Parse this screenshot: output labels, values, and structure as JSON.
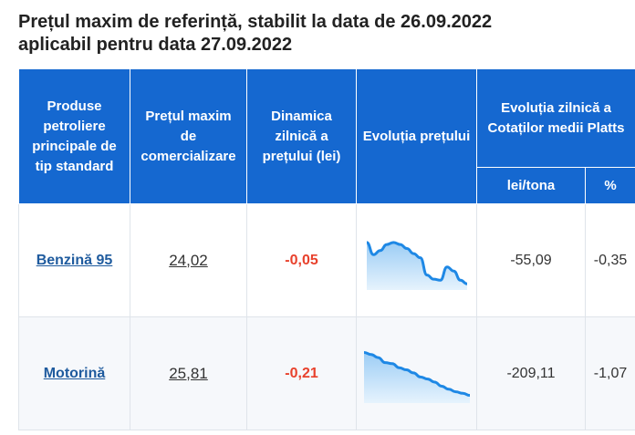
{
  "page": {
    "title_line1": "Prețul maxim de referință, stabilit la data de 26.09.2022",
    "title_line2": "aplicabil pentru data 27.09.2022"
  },
  "table": {
    "headers": {
      "products": "Produse petroliere principale de tip standard",
      "max_price": "Prețul maxim de comercializare",
      "dynamics": "Dinamica zilnică a prețului (lei)",
      "evolution": "Evoluția prețului",
      "platts": "Evoluția zilnică a Cotaților medii Platts",
      "lei_tona": "lei/tona",
      "percent": "%"
    },
    "rows": [
      {
        "product": "Benzină 95",
        "price": "24,02",
        "dynamics": "-0,05",
        "platts_lei": "-55,09",
        "platts_pct": "-0,35",
        "trend": [
          0.86,
          0.62,
          0.7,
          0.82,
          0.86,
          0.82,
          0.74,
          0.64,
          0.56,
          0.22,
          0.14,
          0.12,
          0.38,
          0.3,
          0.12,
          0.05
        ]
      },
      {
        "product": "Motorină",
        "price": "25,81",
        "dynamics": "-0,21",
        "platts_lei": "-209,11",
        "platts_pct": "-1,07",
        "trend": [
          0.92,
          0.88,
          0.82,
          0.72,
          0.7,
          0.62,
          0.58,
          0.52,
          0.44,
          0.4,
          0.34,
          0.26,
          0.2,
          0.15,
          0.12,
          0.08
        ]
      }
    ]
  },
  "colors": {
    "header_bg": "#1568d0",
    "negative": "#e8412c",
    "spark_line": "#1e88e5",
    "spark_fill_top": "#9ccdf5",
    "spark_fill_bottom": "#e6f3fd"
  }
}
